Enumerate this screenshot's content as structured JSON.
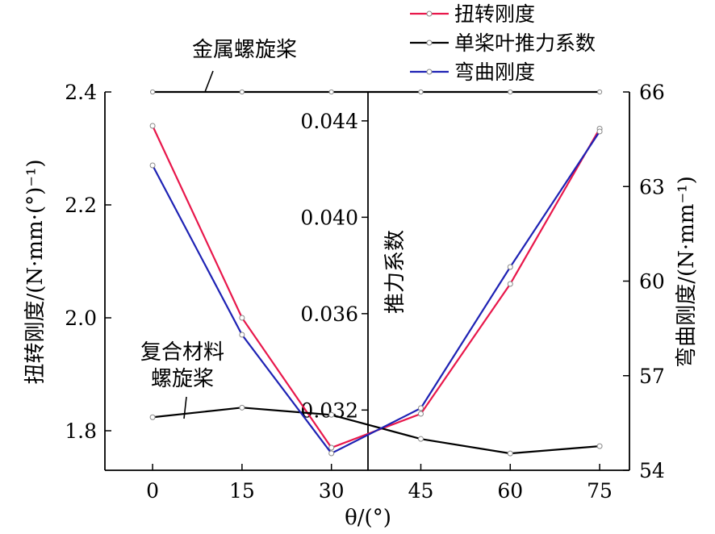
{
  "chart_data": {
    "type": "line",
    "xlabel": "θ/(°)",
    "x": [
      0,
      15,
      30,
      45,
      60,
      75
    ],
    "axes": {
      "left": {
        "label": "扭转刚度/(N·mm·(°)⁻¹)",
        "ylim": [
          1.73,
          2.4
        ],
        "ticks": [
          1.8,
          2.0,
          2.2,
          2.4
        ]
      },
      "inner": {
        "label": "推力系数",
        "ylim": [
          0.0295,
          0.0452
        ],
        "ticks": [
          0.032,
          0.036,
          0.04,
          0.044
        ]
      },
      "right": {
        "label": "弯曲刚度/(N·mm⁻¹)",
        "ylim": [
          54,
          66
        ],
        "ticks": [
          54,
          57,
          60,
          63,
          66
        ]
      }
    },
    "series": [
      {
        "name": "扭转刚度",
        "axis": "left",
        "color": "#e8174b",
        "values": [
          2.34,
          2.0,
          1.77,
          1.83,
          2.06,
          2.335
        ]
      },
      {
        "name": "单桨叶推力系数",
        "axis": "inner",
        "color": "#000000",
        "values": [
          0.0317,
          0.0321,
          0.0318,
          0.0308,
          0.0302,
          0.0305
        ]
      },
      {
        "name": "弯曲刚度",
        "axis": "left",
        "color": "#1e22b4",
        "values": [
          2.27,
          1.97,
          1.76,
          1.84,
          2.09,
          2.33
        ]
      }
    ],
    "reference_line": {
      "axis": "left",
      "value": 2.4,
      "color": "#000000"
    },
    "annotations": [
      {
        "text": "金属螺旋桨"
      },
      {
        "lines": [
          "复合材料",
          "螺旋桨"
        ]
      }
    ],
    "legend_position": "top-right",
    "grid": false
  }
}
